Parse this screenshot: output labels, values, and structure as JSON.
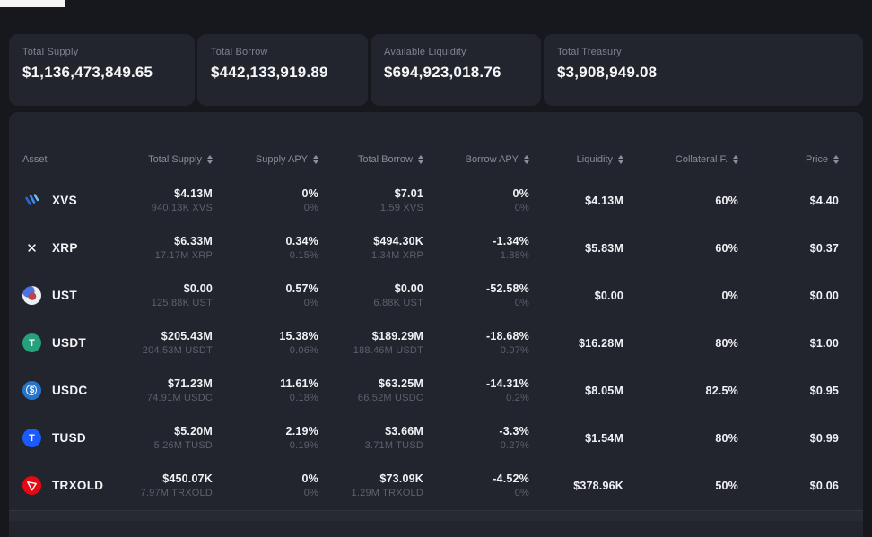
{
  "stats": [
    {
      "label": "Total Supply",
      "value": "$1,136,473,849.65"
    },
    {
      "label": "Total Borrow",
      "value": "$442,133,919.89"
    },
    {
      "label": "Available Liquidity",
      "value": "$694,923,018.76"
    },
    {
      "label": "Total Treasury",
      "value": "$3,908,949.08"
    }
  ],
  "table": {
    "columns": [
      {
        "label": "Asset",
        "sortable": false
      },
      {
        "label": "Total Supply",
        "sortable": true
      },
      {
        "label": "Supply APY",
        "sortable": true
      },
      {
        "label": "Total Borrow",
        "sortable": true
      },
      {
        "label": "Borrow APY",
        "sortable": true
      },
      {
        "label": "Liquidity",
        "sortable": true
      },
      {
        "label": "Collateral F.",
        "sortable": true
      },
      {
        "label": "Price",
        "sortable": true
      }
    ],
    "rows": [
      {
        "asset": "XVS",
        "icon": {
          "style": "xvs"
        },
        "total_supply": "$4.13M",
        "total_supply_sub": "940.13K XVS",
        "supply_apy": "0%",
        "supply_apy_sub": "0%",
        "total_borrow": "$7.01",
        "total_borrow_sub": "1.59 XVS",
        "borrow_apy": "0%",
        "borrow_apy_sub": "0%",
        "liquidity": "$4.13M",
        "collateral_factor": "60%",
        "price": "$4.40"
      },
      {
        "asset": "XRP",
        "icon": {
          "style": "xrp"
        },
        "total_supply": "$6.33M",
        "total_supply_sub": "17.17M XRP",
        "supply_apy": "0.34%",
        "supply_apy_sub": "0.15%",
        "total_borrow": "$494.30K",
        "total_borrow_sub": "1.34M XRP",
        "borrow_apy": "-1.34%",
        "borrow_apy_sub": "1.88%",
        "liquidity": "$5.83M",
        "collateral_factor": "60%",
        "price": "$0.37"
      },
      {
        "asset": "UST",
        "icon": {
          "style": "ust"
        },
        "total_supply": "$0.00",
        "total_supply_sub": "125.88K UST",
        "supply_apy": "0.57%",
        "supply_apy_sub": "0%",
        "total_borrow": "$0.00",
        "total_borrow_sub": "6.88K UST",
        "borrow_apy": "-52.58%",
        "borrow_apy_sub": "0%",
        "liquidity": "$0.00",
        "collateral_factor": "0%",
        "price": "$0.00"
      },
      {
        "asset": "USDT",
        "icon": {
          "style": "letter",
          "bg": "#26a17b",
          "glyph": "T"
        },
        "total_supply": "$205.43M",
        "total_supply_sub": "204.53M USDT",
        "supply_apy": "15.38%",
        "supply_apy_sub": "0.06%",
        "total_borrow": "$189.29M",
        "total_borrow_sub": "188.46M USDT",
        "borrow_apy": "-18.68%",
        "borrow_apy_sub": "0.07%",
        "liquidity": "$16.28M",
        "collateral_factor": "80%",
        "price": "$1.00"
      },
      {
        "asset": "USDC",
        "icon": {
          "style": "usdc",
          "bg": "#2775ca",
          "glyph": "$"
        },
        "total_supply": "$71.23M",
        "total_supply_sub": "74.91M USDC",
        "supply_apy": "11.61%",
        "supply_apy_sub": "0.18%",
        "total_borrow": "$63.25M",
        "total_borrow_sub": "66.52M USDC",
        "borrow_apy": "-14.31%",
        "borrow_apy_sub": "0.2%",
        "liquidity": "$8.05M",
        "collateral_factor": "82.5%",
        "price": "$0.95"
      },
      {
        "asset": "TUSD",
        "icon": {
          "style": "letter",
          "bg": "#1b5aff",
          "glyph": "T"
        },
        "total_supply": "$5.20M",
        "total_supply_sub": "5.26M TUSD",
        "supply_apy": "2.19%",
        "supply_apy_sub": "0.19%",
        "total_borrow": "$3.66M",
        "total_borrow_sub": "3.71M TUSD",
        "borrow_apy": "-3.3%",
        "borrow_apy_sub": "0.27%",
        "liquidity": "$1.54M",
        "collateral_factor": "80%",
        "price": "$0.99"
      },
      {
        "asset": "TRXOLD",
        "icon": {
          "style": "tron",
          "bg": "#e50915"
        },
        "total_supply": "$450.07K",
        "total_supply_sub": "7.97M TRXOLD",
        "supply_apy": "0%",
        "supply_apy_sub": "0%",
        "total_borrow": "$73.09K",
        "total_borrow_sub": "1.29M TRXOLD",
        "borrow_apy": "-4.52%",
        "borrow_apy_sub": "0%",
        "liquidity": "$378.96K",
        "collateral_factor": "50%",
        "price": "$0.06"
      }
    ]
  },
  "colors": {
    "page_bg": "#16181d",
    "card_bg": "#22252d",
    "text_primary": "#f1f2f5",
    "text_secondary": "#5c616c",
    "usdt_green": "#26a17b",
    "usdc_blue": "#2775ca",
    "tusd_blue": "#1b5aff",
    "tron_red": "#e50915"
  }
}
